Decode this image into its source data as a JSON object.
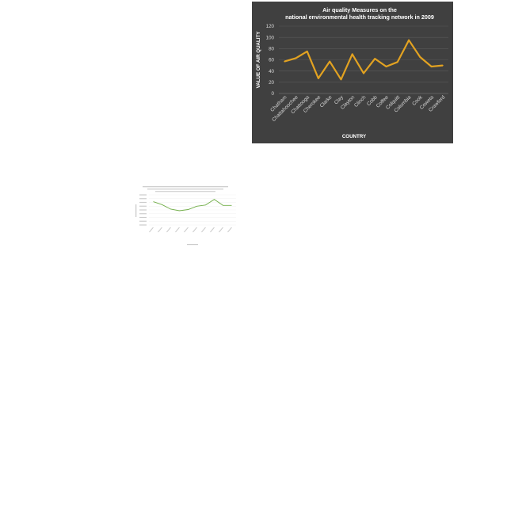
{
  "chart_data": [
    {
      "type": "line",
      "title": "Air quality Measures on the national environmental health tracking network in 2009",
      "xlabel": "COUNTRY",
      "ylabel": "VALUE OF AIR QUALITY",
      "ylim": [
        0,
        120
      ],
      "yticks": [
        0,
        20,
        40,
        60,
        80,
        100,
        120
      ],
      "grid": true,
      "categories": [
        "Chatham",
        "Chattahoochee",
        "Chattooga",
        "Cherokee",
        "Clarke",
        "Clay",
        "Clayton",
        "Clinch",
        "Cobb",
        "Coffee",
        "Colquitt",
        "Columbia",
        "Cook",
        "Coweta",
        "Crawford"
      ],
      "values": [
        57,
        63,
        75,
        27,
        57,
        25,
        70,
        36,
        62,
        48,
        56,
        95,
        65,
        48,
        50
      ],
      "colors": {
        "background": "#404040",
        "line": "#e2a221",
        "text": "#ffffff",
        "axis_text": "#d9d9d9",
        "grid": "#595959"
      }
    },
    {
      "type": "line",
      "title": "",
      "xlabel": "",
      "ylabel": "",
      "ylim": [
        0,
        8
      ],
      "categories": [
        "",
        "",
        "",
        "",
        "",
        "",
        "",
        "",
        "",
        ""
      ],
      "values": [
        6.2,
        5.4,
        4.2,
        3.8,
        4.1,
        5.0,
        5.3,
        6.8,
        5.2,
        5.2
      ],
      "colors": {
        "background": "#ffffff",
        "line": "#70ad47",
        "text": "#aaaaaa",
        "grid": "#eeeeee"
      }
    }
  ]
}
